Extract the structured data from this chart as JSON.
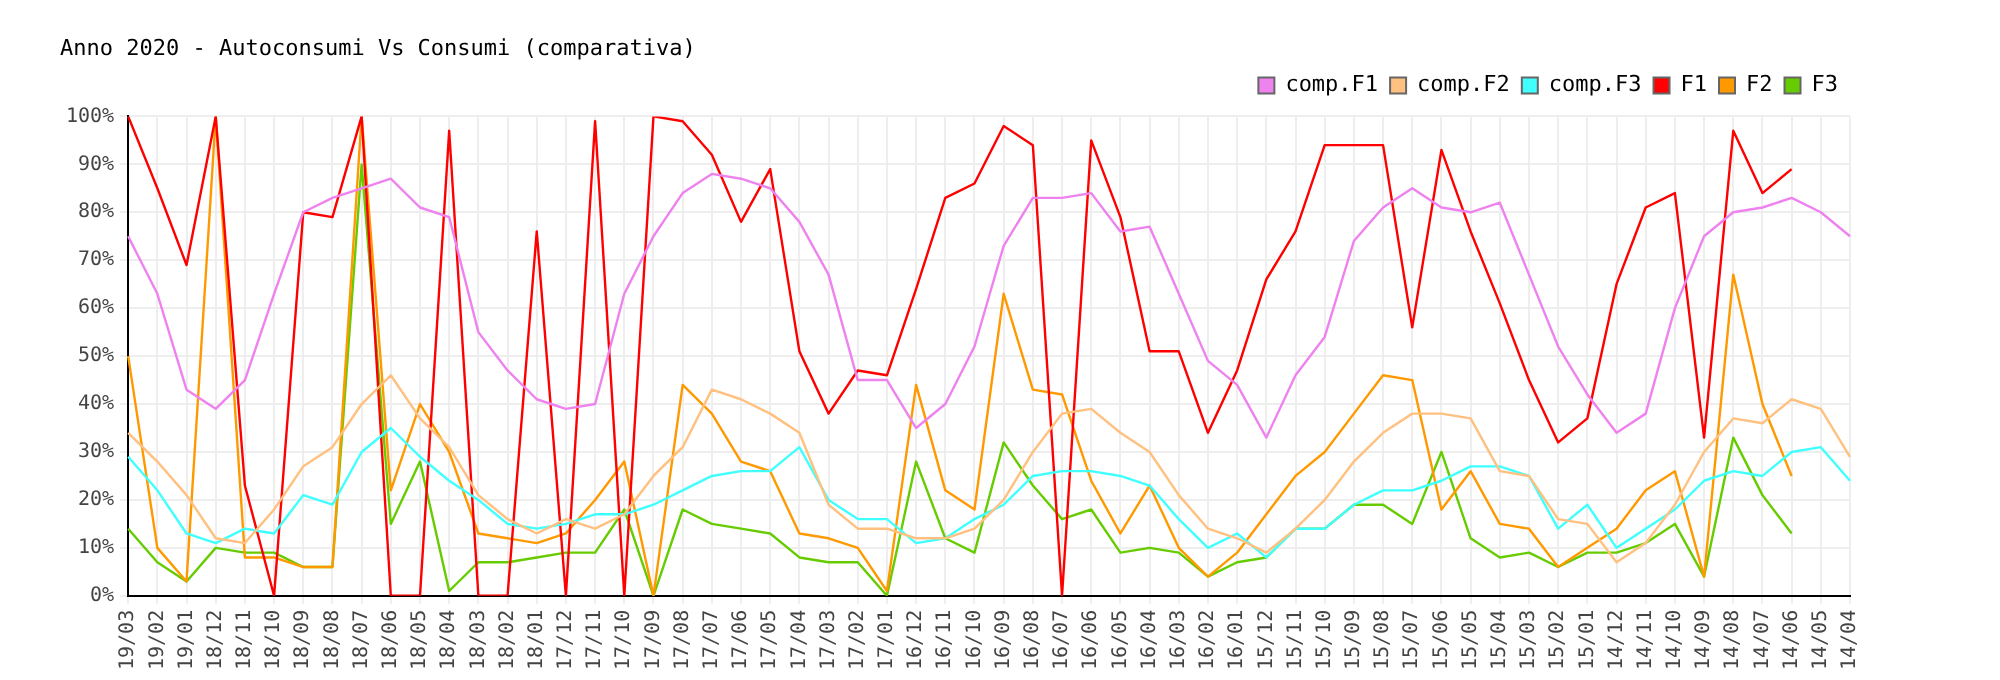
{
  "chart_data": {
    "type": "line",
    "title": "Anno 2020 - Autoconsumi Vs Consumi (comparativa)",
    "categories": [
      "19/03",
      "19/02",
      "19/01",
      "18/12",
      "18/11",
      "18/10",
      "18/09",
      "18/08",
      "18/07",
      "18/06",
      "18/05",
      "18/04",
      "18/03",
      "18/02",
      "18/01",
      "17/12",
      "17/11",
      "17/10",
      "17/09",
      "17/08",
      "17/07",
      "17/06",
      "17/05",
      "17/04",
      "17/03",
      "17/02",
      "17/01",
      "16/12",
      "16/11",
      "16/10",
      "16/09",
      "16/08",
      "16/07",
      "16/06",
      "16/05",
      "16/04",
      "16/03",
      "16/02",
      "16/01",
      "15/12",
      "15/11",
      "15/10",
      "15/09",
      "15/08",
      "15/07",
      "15/06",
      "15/05",
      "15/04",
      "15/03",
      "15/02",
      "15/01",
      "14/12",
      "14/11",
      "14/10",
      "14/09",
      "14/08",
      "14/07",
      "14/06",
      "14/05",
      "14/04"
    ],
    "series": [
      {
        "name": "comp.F1",
        "color": "#ee82ee",
        "values": [
          75,
          63,
          43,
          39,
          45,
          63,
          80,
          83,
          85,
          87,
          81,
          79,
          55,
          47,
          41,
          39,
          40,
          63,
          75,
          84,
          88,
          87,
          85,
          78,
          67,
          45,
          45,
          35,
          40,
          52,
          73,
          83,
          83,
          84,
          76,
          77,
          63,
          49,
          44,
          33,
          46,
          54,
          74,
          81,
          85,
          81,
          80,
          82,
          67,
          52,
          42,
          34,
          38,
          60,
          75,
          80,
          81,
          83,
          80,
          75
        ]
      },
      {
        "name": "comp.F2",
        "color": "#ffc080",
        "values": [
          34,
          28,
          21,
          12,
          11,
          18,
          27,
          31,
          40,
          46,
          37,
          31,
          21,
          16,
          13,
          16,
          14,
          17,
          25,
          31,
          43,
          41,
          38,
          34,
          19,
          14,
          14,
          12,
          12,
          14,
          20,
          30,
          38,
          39,
          34,
          30,
          21,
          14,
          12,
          9,
          14,
          20,
          28,
          34,
          38,
          38,
          37,
          26,
          25,
          16,
          15,
          7,
          11,
          19,
          30,
          37,
          36,
          41,
          39,
          29
        ]
      },
      {
        "name": "comp.F3",
        "color": "#40ffff",
        "values": [
          29,
          22,
          13,
          11,
          14,
          13,
          21,
          19,
          30,
          35,
          29,
          24,
          20,
          15,
          14,
          15,
          17,
          17,
          19,
          22,
          25,
          26,
          26,
          31,
          20,
          16,
          16,
          11,
          12,
          16,
          19,
          25,
          26,
          26,
          25,
          23,
          16,
          10,
          13,
          8,
          14,
          14,
          19,
          22,
          22,
          24,
          27,
          27,
          25,
          14,
          19,
          10,
          14,
          18,
          24,
          26,
          25,
          30,
          31,
          24
        ]
      },
      {
        "name": "F1",
        "color": "#ff0000",
        "values": [
          100,
          85,
          69,
          100,
          23,
          0,
          80,
          79,
          100,
          0,
          0,
          97,
          0,
          0,
          76,
          0,
          99,
          0,
          100,
          99,
          92,
          78,
          89,
          51,
          38,
          47,
          46,
          64,
          83,
          86,
          98,
          94,
          0,
          95,
          79,
          51,
          51,
          34,
          47,
          66,
          76,
          94,
          94,
          94,
          56,
          93,
          76,
          61,
          45,
          32,
          37,
          65,
          81,
          84,
          33,
          97,
          84,
          89,
          null,
          null
        ]
      },
      {
        "name": "F2",
        "color": "#ff9900",
        "values": [
          50,
          10,
          3,
          100,
          8,
          8,
          6,
          6,
          100,
          22,
          40,
          30,
          13,
          12,
          11,
          13,
          20,
          28,
          0,
          44,
          38,
          28,
          26,
          13,
          12,
          10,
          1,
          44,
          22,
          18,
          63,
          43,
          42,
          24,
          13,
          23,
          10,
          4,
          9,
          17,
          25,
          30,
          38,
          46,
          45,
          18,
          26,
          15,
          14,
          6,
          10,
          14,
          22,
          26,
          4,
          67,
          40,
          25,
          null,
          null
        ]
      },
      {
        "name": "F3",
        "color": "#66cc00",
        "values": [
          14,
          7,
          3,
          10,
          9,
          9,
          6,
          6,
          90,
          15,
          28,
          1,
          7,
          7,
          8,
          9,
          9,
          18,
          0,
          18,
          15,
          14,
          13,
          8,
          7,
          7,
          0,
          28,
          12,
          9,
          32,
          23,
          16,
          18,
          9,
          10,
          9,
          4,
          7,
          8,
          14,
          14,
          19,
          19,
          15,
          30,
          12,
          8,
          9,
          6,
          9,
          9,
          11,
          15,
          4,
          33,
          21,
          13,
          null,
          null
        ]
      }
    ],
    "ylim": [
      0,
      100
    ],
    "yticks": [
      {
        "value": 0,
        "label": "0%"
      },
      {
        "value": 10,
        "label": "10%"
      },
      {
        "value": 20,
        "label": "20%"
      },
      {
        "value": 30,
        "label": "30%"
      },
      {
        "value": 40,
        "label": "40%"
      },
      {
        "value": 50,
        "label": "50%"
      },
      {
        "value": 60,
        "label": "60%"
      },
      {
        "value": 70,
        "label": "70%"
      },
      {
        "value": 80,
        "label": "80%"
      },
      {
        "value": 90,
        "label": "90%"
      },
      {
        "value": 100,
        "label": "100%"
      }
    ],
    "grid": true,
    "legend": "top right",
    "marker": "none",
    "line_style": "solid"
  }
}
